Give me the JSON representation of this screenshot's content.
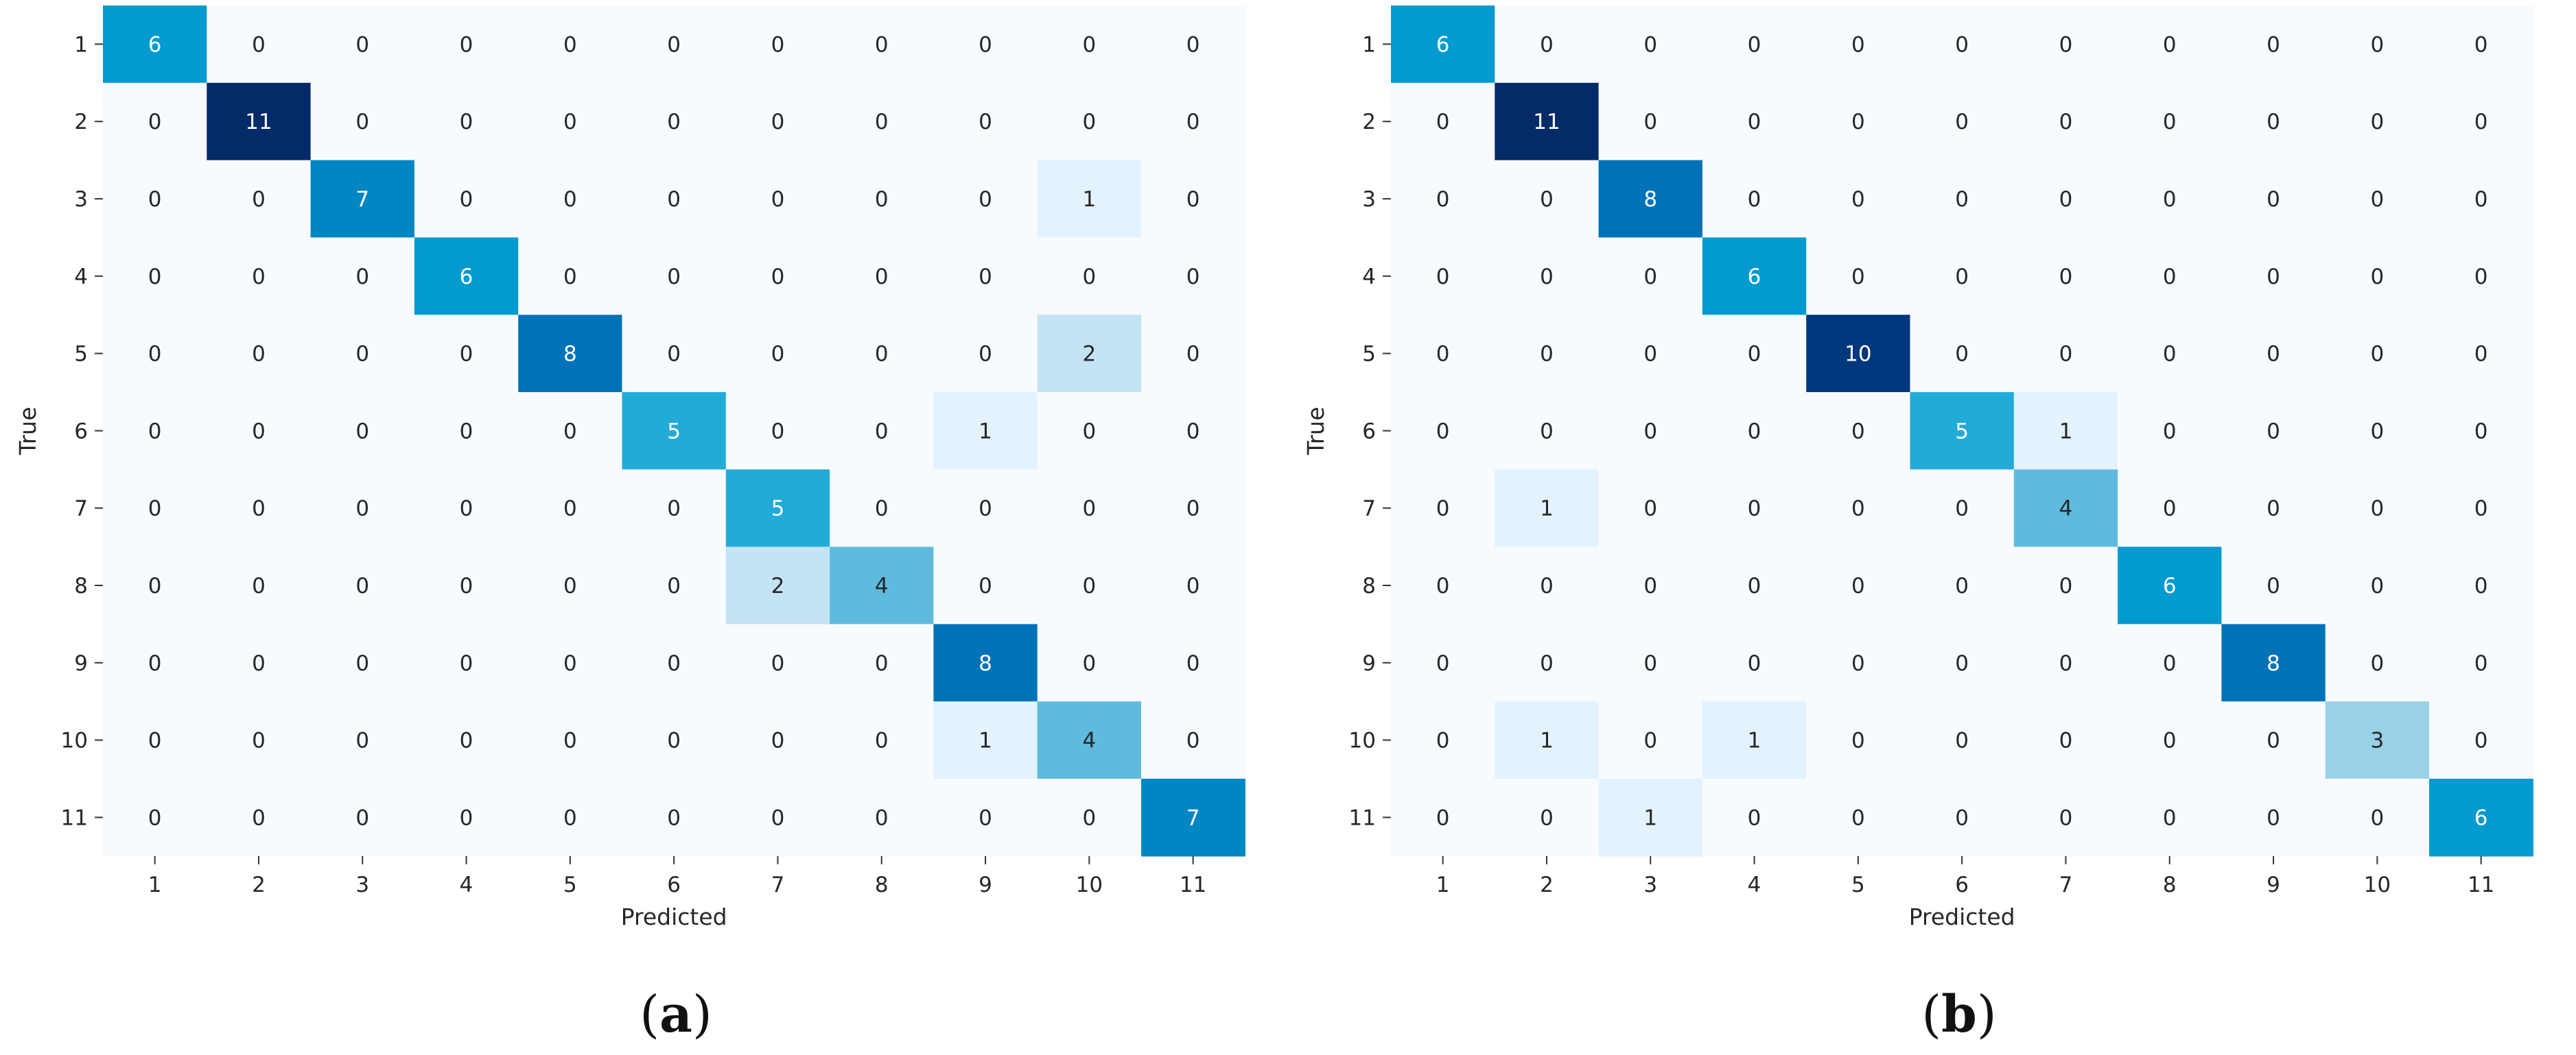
{
  "chart_data": [
    {
      "type": "heatmap",
      "caption_open": "(",
      "caption_letter": "a",
      "caption_close": ")",
      "xlabel": "Predicted",
      "ylabel": "True",
      "x_ticks": [
        "1",
        "2",
        "3",
        "4",
        "5",
        "6",
        "7",
        "8",
        "9",
        "10",
        "11"
      ],
      "y_ticks": [
        "1",
        "2",
        "3",
        "4",
        "5",
        "6",
        "7",
        "8",
        "9",
        "10",
        "11"
      ],
      "vmax": 11,
      "colormap": [
        "#f7fbff",
        "#dceefc",
        "#a8d6ea",
        "#58b8dc",
        "#04a3d5",
        "#0089c4",
        "#006db5",
        "#003c84",
        "#032b68"
      ],
      "matrix": [
        [
          6,
          0,
          0,
          0,
          0,
          0,
          0,
          0,
          0,
          0,
          0
        ],
        [
          0,
          11,
          0,
          0,
          0,
          0,
          0,
          0,
          0,
          0,
          0
        ],
        [
          0,
          0,
          7,
          0,
          0,
          0,
          0,
          0,
          0,
          1,
          0
        ],
        [
          0,
          0,
          0,
          6,
          0,
          0,
          0,
          0,
          0,
          0,
          0
        ],
        [
          0,
          0,
          0,
          0,
          8,
          0,
          0,
          0,
          0,
          2,
          0
        ],
        [
          0,
          0,
          0,
          0,
          0,
          5,
          0,
          0,
          1,
          0,
          0
        ],
        [
          0,
          0,
          0,
          0,
          0,
          0,
          5,
          0,
          0,
          0,
          0
        ],
        [
          0,
          0,
          0,
          0,
          0,
          0,
          2,
          4,
          0,
          0,
          0
        ],
        [
          0,
          0,
          0,
          0,
          0,
          0,
          0,
          0,
          8,
          0,
          0
        ],
        [
          0,
          0,
          0,
          0,
          0,
          0,
          0,
          0,
          1,
          4,
          0
        ],
        [
          0,
          0,
          0,
          0,
          0,
          0,
          0,
          0,
          0,
          0,
          7
        ]
      ]
    },
    {
      "type": "heatmap",
      "caption_open": "(",
      "caption_letter": "b",
      "caption_close": ")",
      "xlabel": "Predicted",
      "ylabel": "True",
      "x_ticks": [
        "1",
        "2",
        "3",
        "4",
        "5",
        "6",
        "7",
        "8",
        "9",
        "10",
        "11"
      ],
      "y_ticks": [
        "1",
        "2",
        "3",
        "4",
        "5",
        "6",
        "7",
        "8",
        "9",
        "10",
        "11"
      ],
      "vmax": 11,
      "colormap": [
        "#f7fbff",
        "#dceefc",
        "#a8d6ea",
        "#58b8dc",
        "#04a3d5",
        "#0089c4",
        "#006db5",
        "#003c84",
        "#032b68"
      ],
      "matrix": [
        [
          6,
          0,
          0,
          0,
          0,
          0,
          0,
          0,
          0,
          0,
          0
        ],
        [
          0,
          11,
          0,
          0,
          0,
          0,
          0,
          0,
          0,
          0,
          0
        ],
        [
          0,
          0,
          8,
          0,
          0,
          0,
          0,
          0,
          0,
          0,
          0
        ],
        [
          0,
          0,
          0,
          6,
          0,
          0,
          0,
          0,
          0,
          0,
          0
        ],
        [
          0,
          0,
          0,
          0,
          10,
          0,
          0,
          0,
          0,
          0,
          0
        ],
        [
          0,
          0,
          0,
          0,
          0,
          5,
          1,
          0,
          0,
          0,
          0
        ],
        [
          0,
          1,
          0,
          0,
          0,
          0,
          4,
          0,
          0,
          0,
          0
        ],
        [
          0,
          0,
          0,
          0,
          0,
          0,
          0,
          6,
          0,
          0,
          0
        ],
        [
          0,
          0,
          0,
          0,
          0,
          0,
          0,
          0,
          8,
          0,
          0
        ],
        [
          0,
          1,
          0,
          1,
          0,
          0,
          0,
          0,
          0,
          3,
          0
        ],
        [
          0,
          0,
          1,
          0,
          0,
          0,
          0,
          0,
          0,
          0,
          6
        ]
      ]
    }
  ]
}
